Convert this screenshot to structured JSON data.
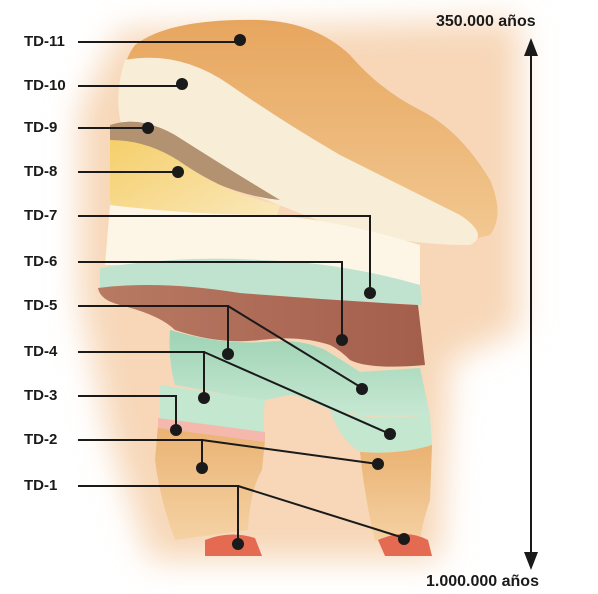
{
  "diagram": {
    "layers": [
      "TD-11",
      "TD-10",
      "TD-9",
      "TD-8",
      "TD-7",
      "TD-6",
      "TD-5",
      "TD-4",
      "TD-3",
      "TD-2",
      "TD-1"
    ],
    "time_axis": {
      "top_label": "350.000 años",
      "bottom_label": "1.000.000 años"
    }
  },
  "colors": {
    "halo": "#f6d4b4",
    "td11": "#e9b06e",
    "td10": "#f8edd6",
    "td9": "#b09070",
    "td8": "#f3d482",
    "td7": "#fdf4e4",
    "td6": "#bfe3cf",
    "td5": "#b06d5a",
    "td4": "#9fd4b6",
    "td3": "#c2e6cf",
    "td2": "#e9b06e",
    "td1": "#e46a52",
    "line": "#1a1a1a"
  }
}
